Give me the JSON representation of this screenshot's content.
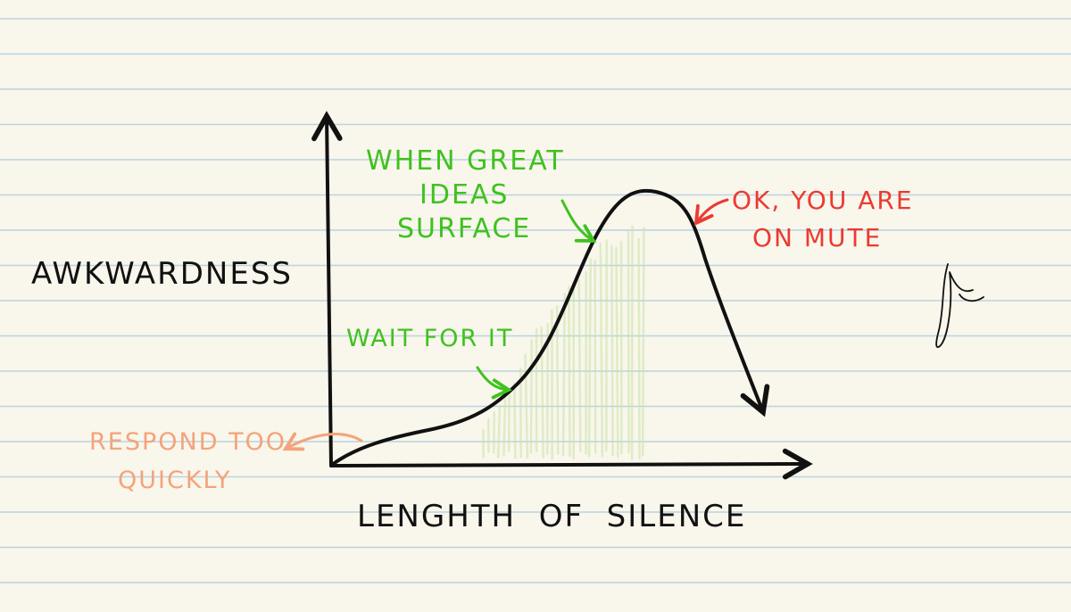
{
  "chart_data": {
    "type": "line",
    "title": "",
    "xlabel": "LENGHTH  OF  SILENCE",
    "ylabel": "AWKWARDNESS",
    "annotations": [
      {
        "lines": [
          "RESPOND TOO",
          "QUICKLY"
        ],
        "color": "#f4a37a"
      },
      {
        "lines": [
          "WAIT FOR IT"
        ],
        "color": "#3fc21f"
      },
      {
        "lines": [
          "WHEN GREAT",
          "IDEAS",
          "SURFACE"
        ],
        "color": "#3fc21f"
      },
      {
        "lines": [
          "OK, YOU ARE",
          "ON MUTE"
        ],
        "color": "#ec3a30"
      }
    ]
  },
  "colors": {
    "paper": "#f9f6ec",
    "rule_line": "#b9d3df",
    "ink": "#111111",
    "green": "#3fc21f",
    "orange": "#f4a37a",
    "red": "#ec3a30",
    "shade": "#c9e4a6"
  }
}
